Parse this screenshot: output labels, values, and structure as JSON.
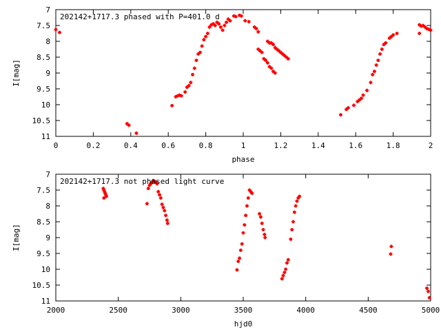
{
  "chart_data": [
    {
      "type": "scatter",
      "title": "202142+1717.3 phased with P=401.0 d",
      "xlabel": "phase",
      "ylabel": "I[mag]",
      "xlim": [
        0,
        2
      ],
      "ylim": [
        11,
        7
      ],
      "y_inverted": true,
      "xticks": [
        "0",
        "0.2",
        "0.4",
        "0.6",
        "0.8",
        "1",
        "1.2",
        "1.4",
        "1.6",
        "1.8",
        "2"
      ],
      "yticks": [
        "7",
        "7.5",
        "8",
        "8.5",
        "9",
        "9.5",
        "10",
        "10.5",
        "11"
      ],
      "grid": false,
      "color": "#ff0000",
      "points": [
        [
          0.0,
          7.63
        ],
        [
          0.02,
          7.72
        ],
        [
          0.38,
          10.6
        ],
        [
          0.39,
          10.65
        ],
        [
          0.43,
          10.9
        ],
        [
          0.62,
          10.03
        ],
        [
          0.64,
          9.75
        ],
        [
          0.65,
          9.72
        ],
        [
          0.66,
          9.7
        ],
        [
          0.67,
          9.72
        ],
        [
          0.69,
          9.6
        ],
        [
          0.7,
          9.45
        ],
        [
          0.71,
          9.4
        ],
        [
          0.72,
          9.3
        ],
        [
          0.73,
          9.05
        ],
        [
          0.74,
          8.85
        ],
        [
          0.75,
          8.6
        ],
        [
          0.76,
          8.4
        ],
        [
          0.77,
          8.35
        ],
        [
          0.78,
          8.15
        ],
        [
          0.79,
          7.95
        ],
        [
          0.8,
          7.85
        ],
        [
          0.81,
          7.75
        ],
        [
          0.82,
          7.55
        ],
        [
          0.83,
          7.48
        ],
        [
          0.84,
          7.45
        ],
        [
          0.85,
          7.5
        ],
        [
          0.86,
          7.4
        ],
        [
          0.87,
          7.45
        ],
        [
          0.88,
          7.55
        ],
        [
          0.89,
          7.65
        ],
        [
          0.9,
          7.5
        ],
        [
          0.91,
          7.4
        ],
        [
          0.92,
          7.3
        ],
        [
          0.93,
          7.35
        ],
        [
          0.95,
          7.2
        ],
        [
          0.96,
          7.22
        ],
        [
          0.98,
          7.18
        ],
        [
          0.99,
          7.2
        ],
        [
          1.01,
          7.35
        ],
        [
          1.03,
          7.38
        ],
        [
          1.06,
          7.55
        ],
        [
          1.07,
          7.6
        ],
        [
          1.08,
          7.7
        ],
        [
          1.08,
          8.25
        ],
        [
          1.09,
          8.3
        ],
        [
          1.1,
          8.35
        ],
        [
          1.11,
          8.55
        ],
        [
          1.12,
          8.6
        ],
        [
          1.13,
          8.68
        ],
        [
          1.14,
          8.8
        ],
        [
          1.15,
          8.85
        ],
        [
          1.16,
          8.95
        ],
        [
          1.17,
          9.0
        ],
        [
          1.13,
          8.0
        ],
        [
          1.14,
          8.05
        ],
        [
          1.15,
          8.05
        ],
        [
          1.16,
          8.1
        ],
        [
          1.17,
          8.2
        ],
        [
          1.18,
          8.25
        ],
        [
          1.19,
          8.3
        ],
        [
          1.2,
          8.35
        ],
        [
          1.21,
          8.4
        ],
        [
          1.22,
          8.45
        ],
        [
          1.23,
          8.5
        ],
        [
          1.24,
          8.55
        ],
        [
          1.52,
          10.32
        ],
        [
          1.55,
          10.15
        ],
        [
          1.56,
          10.1
        ],
        [
          1.59,
          10.02
        ],
        [
          1.61,
          9.9
        ],
        [
          1.62,
          9.85
        ],
        [
          1.63,
          9.8
        ],
        [
          1.64,
          9.7
        ],
        [
          1.66,
          9.55
        ],
        [
          1.68,
          9.3
        ],
        [
          1.69,
          9.05
        ],
        [
          1.7,
          8.95
        ],
        [
          1.71,
          8.75
        ],
        [
          1.72,
          8.6
        ],
        [
          1.73,
          8.4
        ],
        [
          1.74,
          8.25
        ],
        [
          1.75,
          8.1
        ],
        [
          1.76,
          8.05
        ],
        [
          1.78,
          7.9
        ],
        [
          1.79,
          7.85
        ],
        [
          1.8,
          7.8
        ],
        [
          1.82,
          7.75
        ],
        [
          1.94,
          7.48
        ],
        [
          1.95,
          7.52
        ],
        [
          1.96,
          7.5
        ],
        [
          1.97,
          7.55
        ],
        [
          1.98,
          7.6
        ],
        [
          1.99,
          7.62
        ],
        [
          2.0,
          7.65
        ],
        [
          1.94,
          7.75
        ]
      ]
    },
    {
      "type": "scatter",
      "title": "202142+1717.3 not phased light curve",
      "xlabel": "hjd0",
      "ylabel": "I[mag]",
      "xlim": [
        2000,
        5000
      ],
      "ylim": [
        11,
        7
      ],
      "y_inverted": true,
      "xticks": [
        "2000",
        "2500",
        "3000",
        "3500",
        "4000",
        "4500",
        "5000"
      ],
      "yticks": [
        "7",
        "7.5",
        "8",
        "8.5",
        "9",
        "9.5",
        "10",
        "10.5",
        "11"
      ],
      "grid": false,
      "color": "#ff0000",
      "points": [
        [
          2380,
          7.45
        ],
        [
          2385,
          7.5
        ],
        [
          2390,
          7.55
        ],
        [
          2395,
          7.6
        ],
        [
          2400,
          7.65
        ],
        [
          2405,
          7.7
        ],
        [
          2385,
          7.75
        ],
        [
          2730,
          7.93
        ],
        [
          2740,
          7.45
        ],
        [
          2750,
          7.35
        ],
        [
          2760,
          7.3
        ],
        [
          2770,
          7.25
        ],
        [
          2780,
          7.2
        ],
        [
          2790,
          7.22
        ],
        [
          2800,
          7.25
        ],
        [
          2810,
          7.3
        ],
        [
          2820,
          7.55
        ],
        [
          2830,
          7.65
        ],
        [
          2840,
          7.75
        ],
        [
          2850,
          7.95
        ],
        [
          2860,
          8.05
        ],
        [
          2870,
          8.15
        ],
        [
          2880,
          8.3
        ],
        [
          2890,
          8.45
        ],
        [
          2895,
          8.55
        ],
        [
          3450,
          10.02
        ],
        [
          3460,
          9.75
        ],
        [
          3470,
          9.65
        ],
        [
          3480,
          9.4
        ],
        [
          3490,
          9.2
        ],
        [
          3500,
          8.85
        ],
        [
          3510,
          8.6
        ],
        [
          3520,
          8.3
        ],
        [
          3530,
          8.0
        ],
        [
          3540,
          7.75
        ],
        [
          3550,
          7.5
        ],
        [
          3560,
          7.55
        ],
        [
          3570,
          7.6
        ],
        [
          3630,
          8.25
        ],
        [
          3640,
          8.35
        ],
        [
          3650,
          8.55
        ],
        [
          3660,
          8.75
        ],
        [
          3670,
          8.9
        ],
        [
          3675,
          9.0
        ],
        [
          3810,
          10.3
        ],
        [
          3820,
          10.2
        ],
        [
          3830,
          10.1
        ],
        [
          3840,
          10.0
        ],
        [
          3850,
          9.8
        ],
        [
          3860,
          9.7
        ],
        [
          3880,
          9.05
        ],
        [
          3890,
          8.75
        ],
        [
          3900,
          8.5
        ],
        [
          3910,
          8.2
        ],
        [
          3920,
          8.0
        ],
        [
          3930,
          7.85
        ],
        [
          3940,
          7.75
        ],
        [
          3950,
          7.7
        ],
        [
          4680,
          9.52
        ],
        [
          4685,
          9.28
        ],
        [
          4970,
          10.6
        ],
        [
          4980,
          10.7
        ],
        [
          4990,
          10.9
        ]
      ]
    }
  ]
}
